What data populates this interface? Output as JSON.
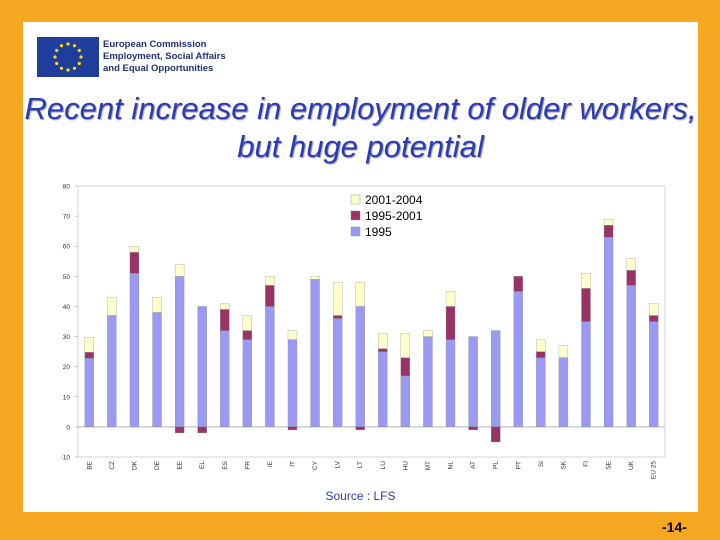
{
  "header": {
    "org_lines": [
      "European Commission",
      "Employment, Social Affairs",
      "and Equal Opportunities"
    ],
    "logo_icon": "eu-flag-icon"
  },
  "title": "Recent increase in employment of older workers, but huge potential",
  "source": "Source : LFS",
  "page_number": "-14-",
  "colors": {
    "background": "#f7a823",
    "s1995": "#9a9af2",
    "s1995_2001": "#993366",
    "s2001_2004": "#ffffcc",
    "title": "#2a3bb5"
  },
  "chart_data": {
    "type": "bar",
    "stacked": true,
    "categories": [
      "BE",
      "CZ",
      "DK",
      "DE",
      "EE",
      "EL",
      "ES",
      "FR",
      "IE",
      "IT",
      "CY",
      "LV",
      "LT",
      "LU",
      "HU",
      "MT",
      "NL",
      "AT",
      "PL",
      "PT",
      "SI",
      "SK",
      "FI",
      "SE",
      "UK",
      "EU 25"
    ],
    "series": [
      {
        "name": "1995",
        "values": [
          22.8,
          37,
          51,
          38,
          50,
          40,
          32,
          29,
          40,
          29,
          49,
          36,
          40,
          25,
          17,
          30,
          29,
          30,
          32,
          45,
          23,
          23,
          35,
          63,
          47,
          35
        ]
      },
      {
        "name": "1995-2001",
        "values": [
          2,
          0,
          7,
          0,
          -2,
          -2,
          7,
          3,
          7,
          -1,
          0,
          1,
          -1,
          1,
          6,
          0,
          11,
          -1,
          -5,
          5,
          2,
          0,
          11,
          4,
          5,
          2
        ]
      },
      {
        "name": "2001-2004",
        "values": [
          5,
          6,
          2,
          5,
          4,
          0,
          2,
          5,
          3,
          3,
          1,
          11,
          8,
          5,
          8,
          2,
          5,
          0,
          0,
          0,
          4,
          4,
          5,
          2,
          4,
          4
        ]
      }
    ],
    "ylim": [
      -10,
      80
    ],
    "yticks": [
      -10,
      0,
      10,
      20,
      30,
      40,
      50,
      60,
      70,
      80
    ],
    "legend_position": "top-right",
    "grid": false
  }
}
